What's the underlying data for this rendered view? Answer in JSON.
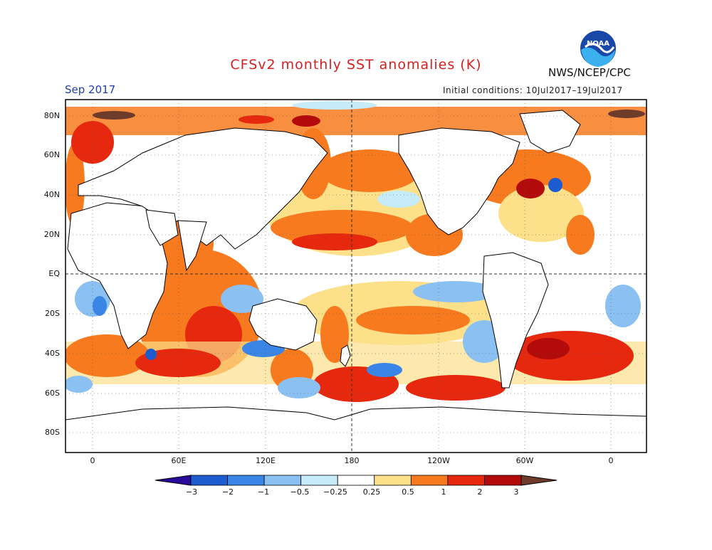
{
  "header": {
    "title": "CFSv2 monthly SST anomalies (K)",
    "agency": "NWS/NCEP/CPC",
    "period": "Sep 2017",
    "initial_conditions": "Initial conditions: 10Jul2017–19Jul2017",
    "logo_icon": "noaa-logo-icon"
  },
  "map": {
    "lat_labels": [
      "80N",
      "60N",
      "40N",
      "20N",
      "EQ",
      "20S",
      "40S",
      "60S",
      "80S"
    ],
    "lon_labels": [
      "0",
      "60E",
      "120E",
      "180",
      "120W",
      "60W",
      "0"
    ]
  },
  "colorbar": {
    "labels": [
      "−3",
      "−2",
      "−1",
      "−0.5",
      "−0.25",
      "0.25",
      "0.5",
      "1",
      "2",
      "3"
    ],
    "colors": [
      "#2a0a9a",
      "#1c5cd0",
      "#3a86e6",
      "#8ac0f2",
      "#c6ecf9",
      "#ffffff",
      "#fce08a",
      "#f77a1e",
      "#e5280e",
      "#b30b0b",
      "#6e3a2a"
    ]
  },
  "colors": {
    "title": "#d62020",
    "period": "#1f3fb0",
    "land": "#ffffff",
    "coast": "#000000"
  }
}
